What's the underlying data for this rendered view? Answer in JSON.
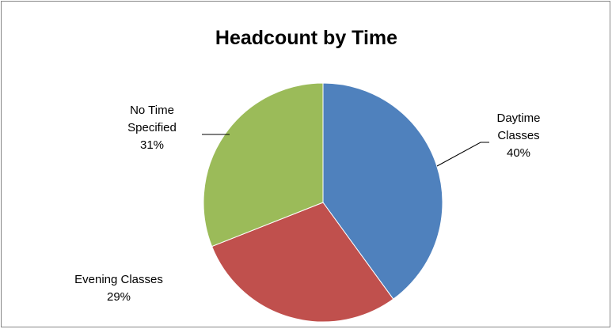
{
  "chart_data": {
    "type": "pie",
    "title": "Headcount by Time",
    "start_angle_deg": 0,
    "direction": "clockwise",
    "slices": [
      {
        "name": "Daytime Classes",
        "value": 40,
        "label_lines": [
          "Daytime",
          "Classes",
          "40%"
        ],
        "color": "#4f81bd"
      },
      {
        "name": "Evening Classes",
        "value": 29,
        "label_lines": [
          "Evening Classes",
          "29%"
        ],
        "color": "#c0504d"
      },
      {
        "name": "No Time Specified",
        "value": 31,
        "label_lines": [
          "No Time",
          "Specified",
          "31%"
        ],
        "color": "#9bbb59"
      }
    ],
    "legend": "none"
  }
}
